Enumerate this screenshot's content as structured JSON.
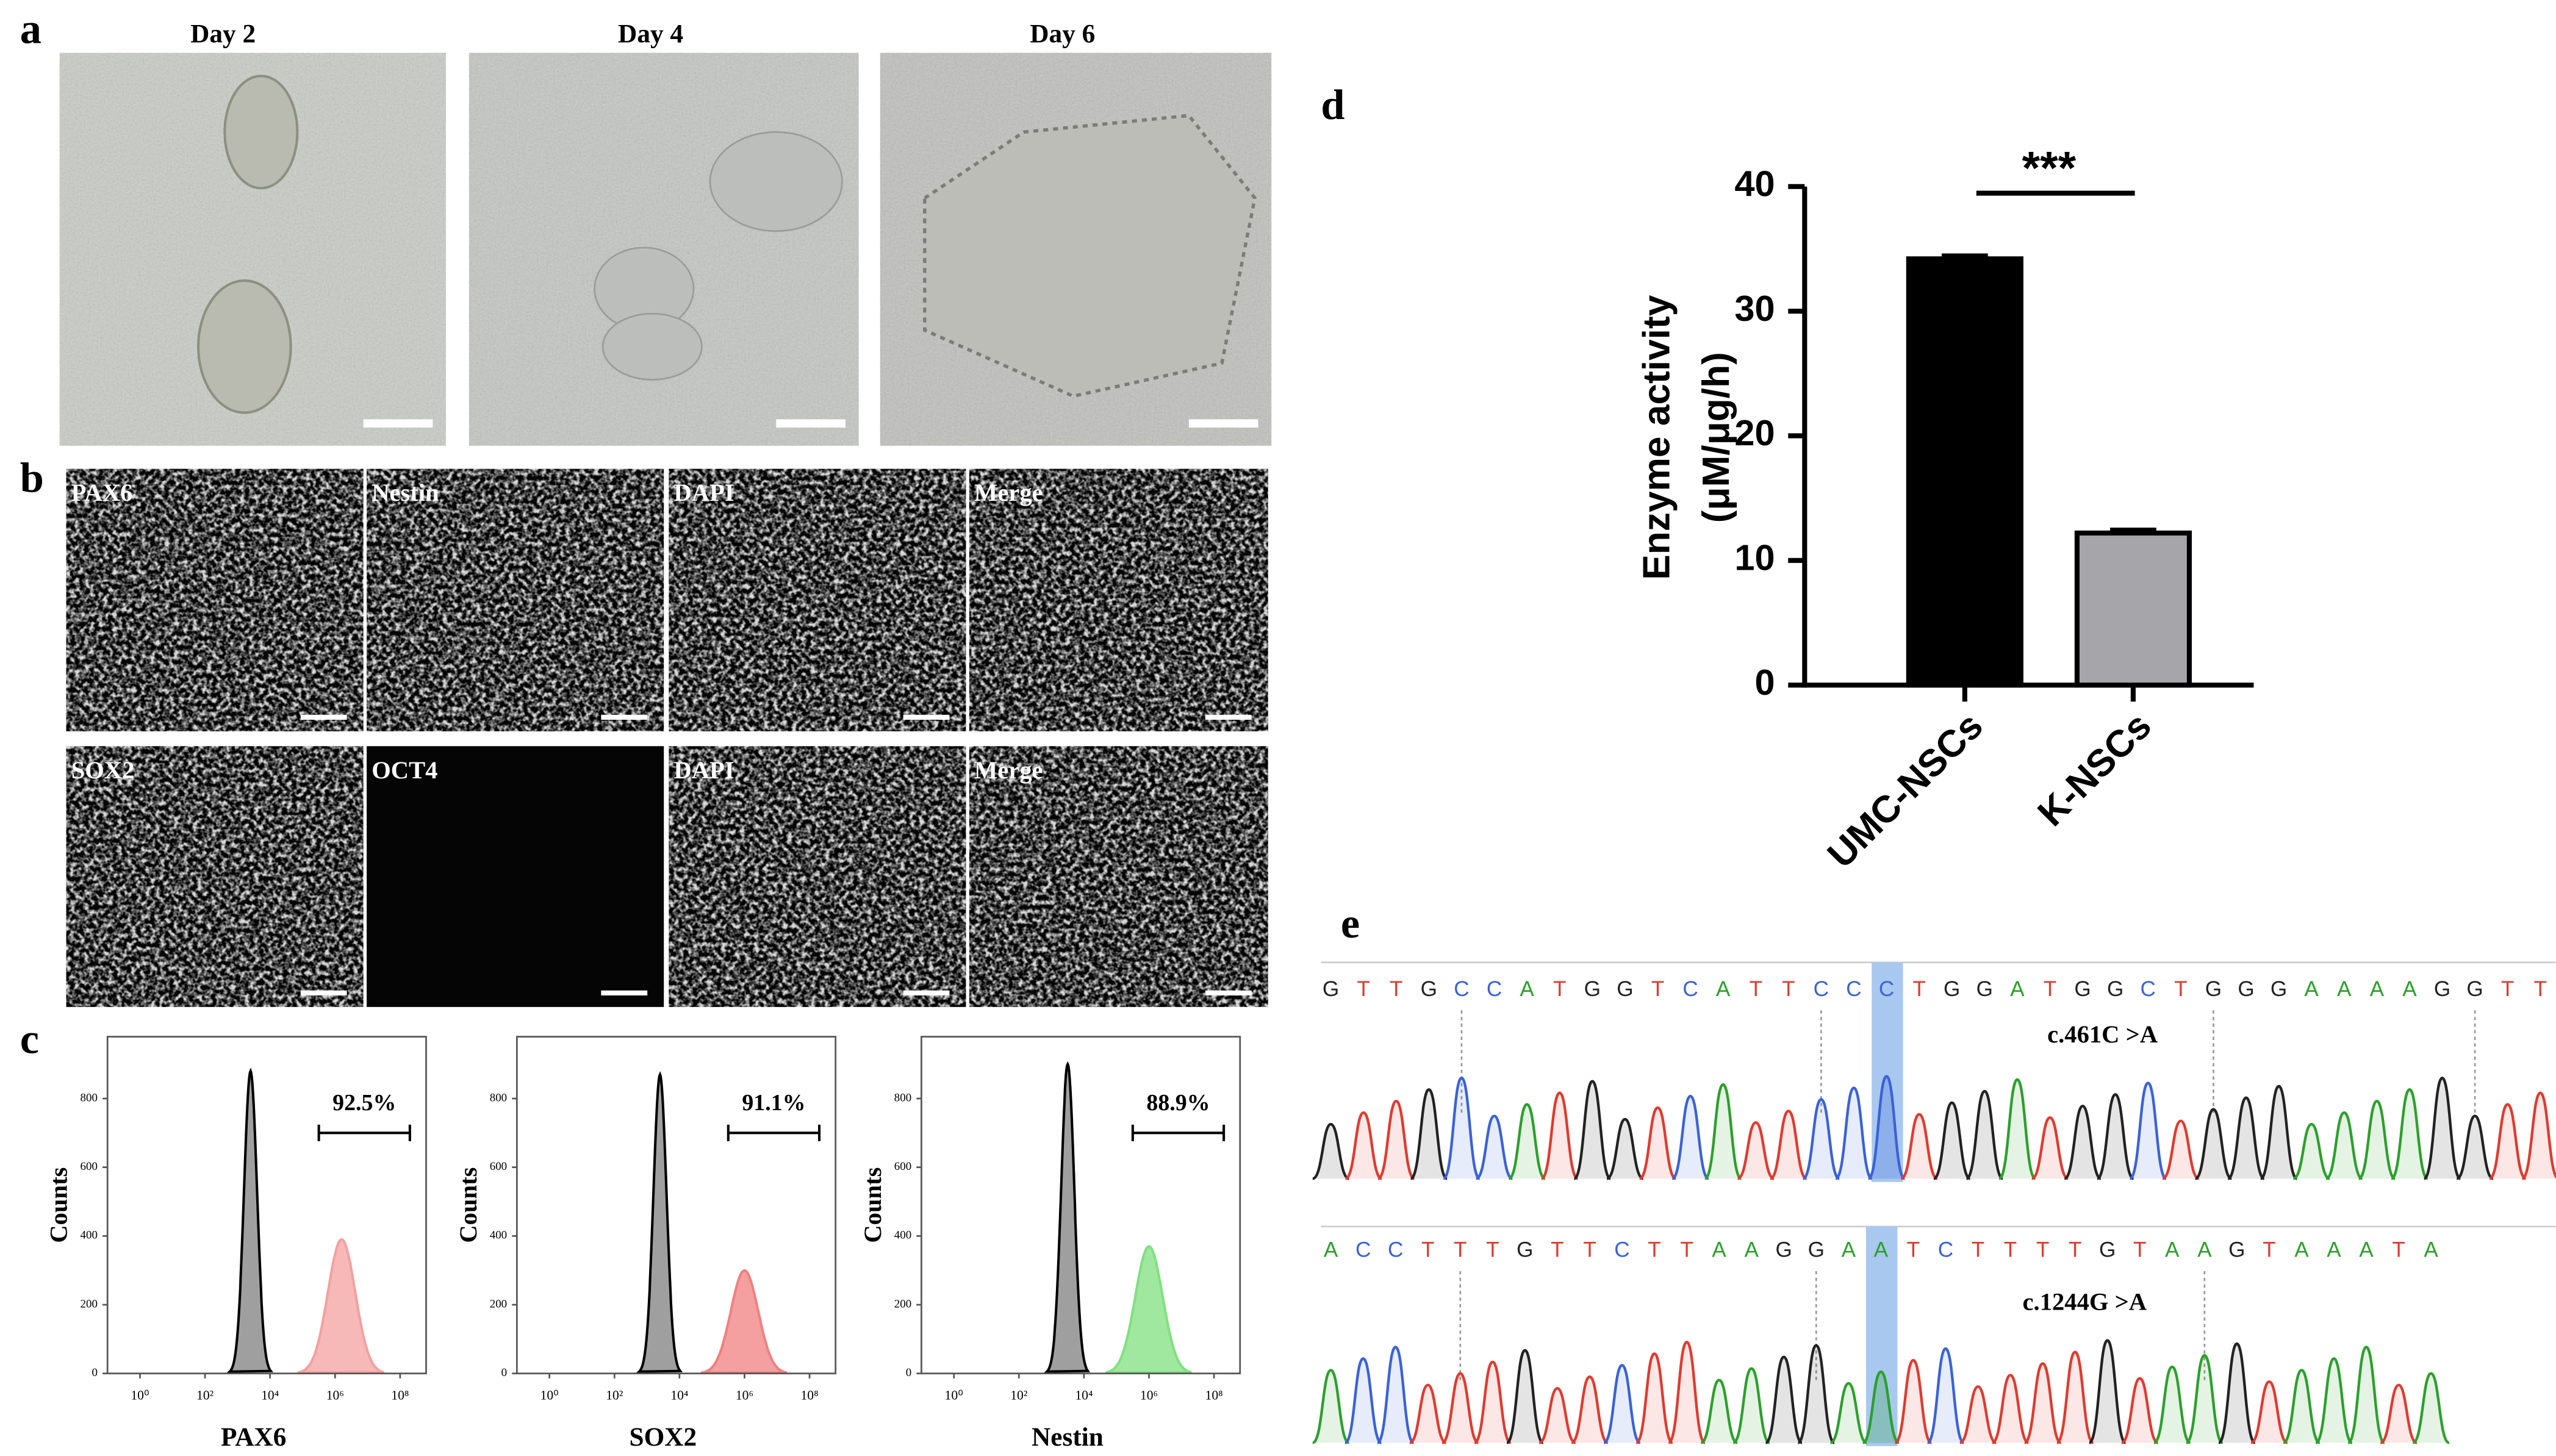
{
  "panel_labels": [
    "a",
    "b",
    "c",
    "d",
    "e"
  ],
  "microscopy": {
    "labels": [
      "Day 2",
      "Day 4",
      "Day 6"
    ]
  },
  "immunofluorescence": {
    "rows": [
      [
        "PAX6",
        "Nestin",
        "DAPI",
        "Merge"
      ],
      [
        "SOX2",
        "OCT4",
        "DAPI",
        "Merge"
      ]
    ]
  },
  "chart_data": [
    {
      "type": "bar",
      "categories": [
        "UMC-NSCs",
        "K-NSCs"
      ],
      "values": [
        34.2,
        12.2
      ],
      "errors": [
        0.3,
        0.3
      ],
      "colors": [
        "#000000",
        "#a6a6aa"
      ],
      "ylabel": [
        "Enzyme activity",
        "(μM/μg/h)"
      ],
      "annotation": "***",
      "ylim": [
        0,
        40
      ],
      "yticks": [
        0,
        10,
        20,
        30,
        40
      ]
    },
    {
      "type": "flow",
      "xlabel": "PAX6",
      "ylabel": "Counts",
      "xlim": [
        -1,
        8.8
      ],
      "ylim": [
        0,
        980
      ],
      "xticks": [
        {
          "value": 0,
          "label": "10⁰"
        },
        {
          "value": 2,
          "label": "10²"
        },
        {
          "value": 4,
          "label": "10⁴"
        },
        {
          "value": 6,
          "label": "10⁶"
        },
        {
          "value": 8,
          "label": "10⁸"
        }
      ],
      "yticks": [
        0,
        200,
        400,
        600,
        800
      ],
      "peaks": [
        {
          "color": "#7f7f7f",
          "x": 3.4,
          "y": 880
        },
        {
          "color": "#f4a0a0",
          "x": 6.2,
          "y": 390
        }
      ],
      "gate": {
        "range": [
          5.5,
          8.3
        ],
        "value": 92.5,
        "label": "92.5%"
      }
    },
    {
      "type": "flow",
      "xlabel": "SOX2",
      "ylabel": "Counts",
      "xlim": [
        -1,
        8.8
      ],
      "ylim": [
        0,
        980
      ],
      "xticks": [
        {
          "value": 0,
          "label": "10⁰"
        },
        {
          "value": 2,
          "label": "10²"
        },
        {
          "value": 4,
          "label": "10⁴"
        },
        {
          "value": 6,
          "label": "10⁶"
        },
        {
          "value": 8,
          "label": "10⁸"
        }
      ],
      "yticks": [
        0,
        200,
        400,
        600,
        800
      ],
      "peaks": [
        {
          "color": "#7f7f7f",
          "x": 3.4,
          "y": 870
        },
        {
          "color": "#f08080",
          "x": 6.0,
          "y": 300
        }
      ],
      "gate": {
        "range": [
          5.5,
          8.3
        ],
        "value": 91.1,
        "label": "91.1%"
      }
    },
    {
      "type": "flow",
      "xlabel": "Nestin",
      "ylabel": "Counts",
      "xlim": [
        -1,
        8.8
      ],
      "ylim": [
        0,
        980
      ],
      "xticks": [
        {
          "value": 0,
          "label": "10⁰"
        },
        {
          "value": 2,
          "label": "10²"
        },
        {
          "value": 4,
          "label": "10⁴"
        },
        {
          "value": 6,
          "label": "10⁶"
        },
        {
          "value": 8,
          "label": "10⁸"
        }
      ],
      "yticks": [
        0,
        200,
        400,
        600,
        800
      ],
      "peaks": [
        {
          "color": "#7f7f7f",
          "x": 3.5,
          "y": 900
        },
        {
          "color": "#80e080",
          "x": 6.0,
          "y": 370
        }
      ],
      "gate": {
        "range": [
          5.5,
          8.3
        ],
        "value": 88.9,
        "label": "88.9%"
      }
    }
  ],
  "sequencing": {
    "base_colors": {
      "A": "#2ca02c",
      "C": "#3a62d8",
      "G": "#222222",
      "T": "#e03a2e"
    },
    "traces": [
      {
        "bases": [
          "G",
          "T",
          "T",
          "G",
          "C",
          "C",
          "A",
          "T",
          "G",
          "G",
          "T",
          "C",
          "A",
          "T",
          "T",
          "C",
          "C",
          "C",
          "T",
          "G",
          "G",
          "A",
          "T",
          "G",
          "G",
          "C",
          "T",
          "G",
          "G",
          "G",
          "A",
          "A",
          "A",
          "A",
          "G",
          "G",
          "T",
          "T"
        ],
        "highlight": 17,
        "annotation": "c.461C >A"
      },
      {
        "bases": [
          "A",
          "C",
          "C",
          "T",
          "T",
          "T",
          "G",
          "T",
          "T",
          "C",
          "T",
          "T",
          "A",
          "A",
          "G",
          "G",
          "A",
          "A",
          "T",
          "C",
          "T",
          "T",
          "T",
          "T",
          "G",
          "T",
          "A",
          "A",
          "G",
          "T",
          "A",
          "A",
          "A",
          "T",
          "A"
        ],
        "highlight": 17,
        "annotation": "c.1244G >A"
      }
    ]
  }
}
